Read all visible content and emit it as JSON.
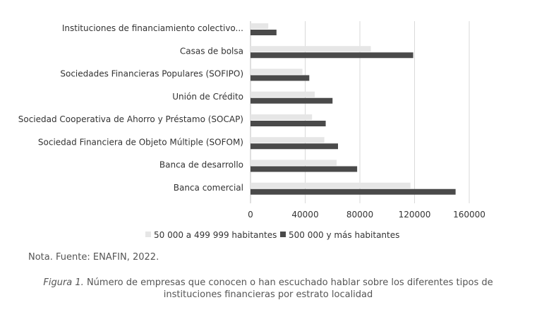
{
  "chart_data": {
    "type": "bar",
    "orientation": "horizontal",
    "categories": [
      "Instituciones de financiamiento colectivo...",
      "Casas de bolsa",
      "Sociedades Financieras Populares (SOFIPO)",
      "Unión de Crédito",
      "Sociedad Cooperativa de Ahorro y Préstamo (SOCAP)",
      "Sociedad Financiera de Objeto Múltiple (SOFOM)",
      "Banca de desarrollo",
      "Banca comercial"
    ],
    "series": [
      {
        "name": "50 000 a 499 999 habitantes",
        "color": "#e6e6e6",
        "values": [
          13000,
          88000,
          38000,
          47000,
          45000,
          54000,
          63000,
          117000
        ]
      },
      {
        "name": "500 000 y más habitantes",
        "color": "#4a4a4a",
        "values": [
          19000,
          119000,
          43000,
          60000,
          55000,
          64000,
          78000,
          150000
        ]
      }
    ],
    "xlim": [
      0,
      160000
    ],
    "xticks": [
      "0",
      "40000",
      "80000",
      "120000",
      "160000"
    ],
    "grid": true,
    "legend": "bottom"
  },
  "note": "Nota. Fuente: ENAFIN, 2022.",
  "caption": {
    "figure_label": "Figura 1.",
    "text": "Número de empresas que conocen o han escuchado hablar sobre los diferentes tipos de instituciones financieras por estrato localidad"
  }
}
